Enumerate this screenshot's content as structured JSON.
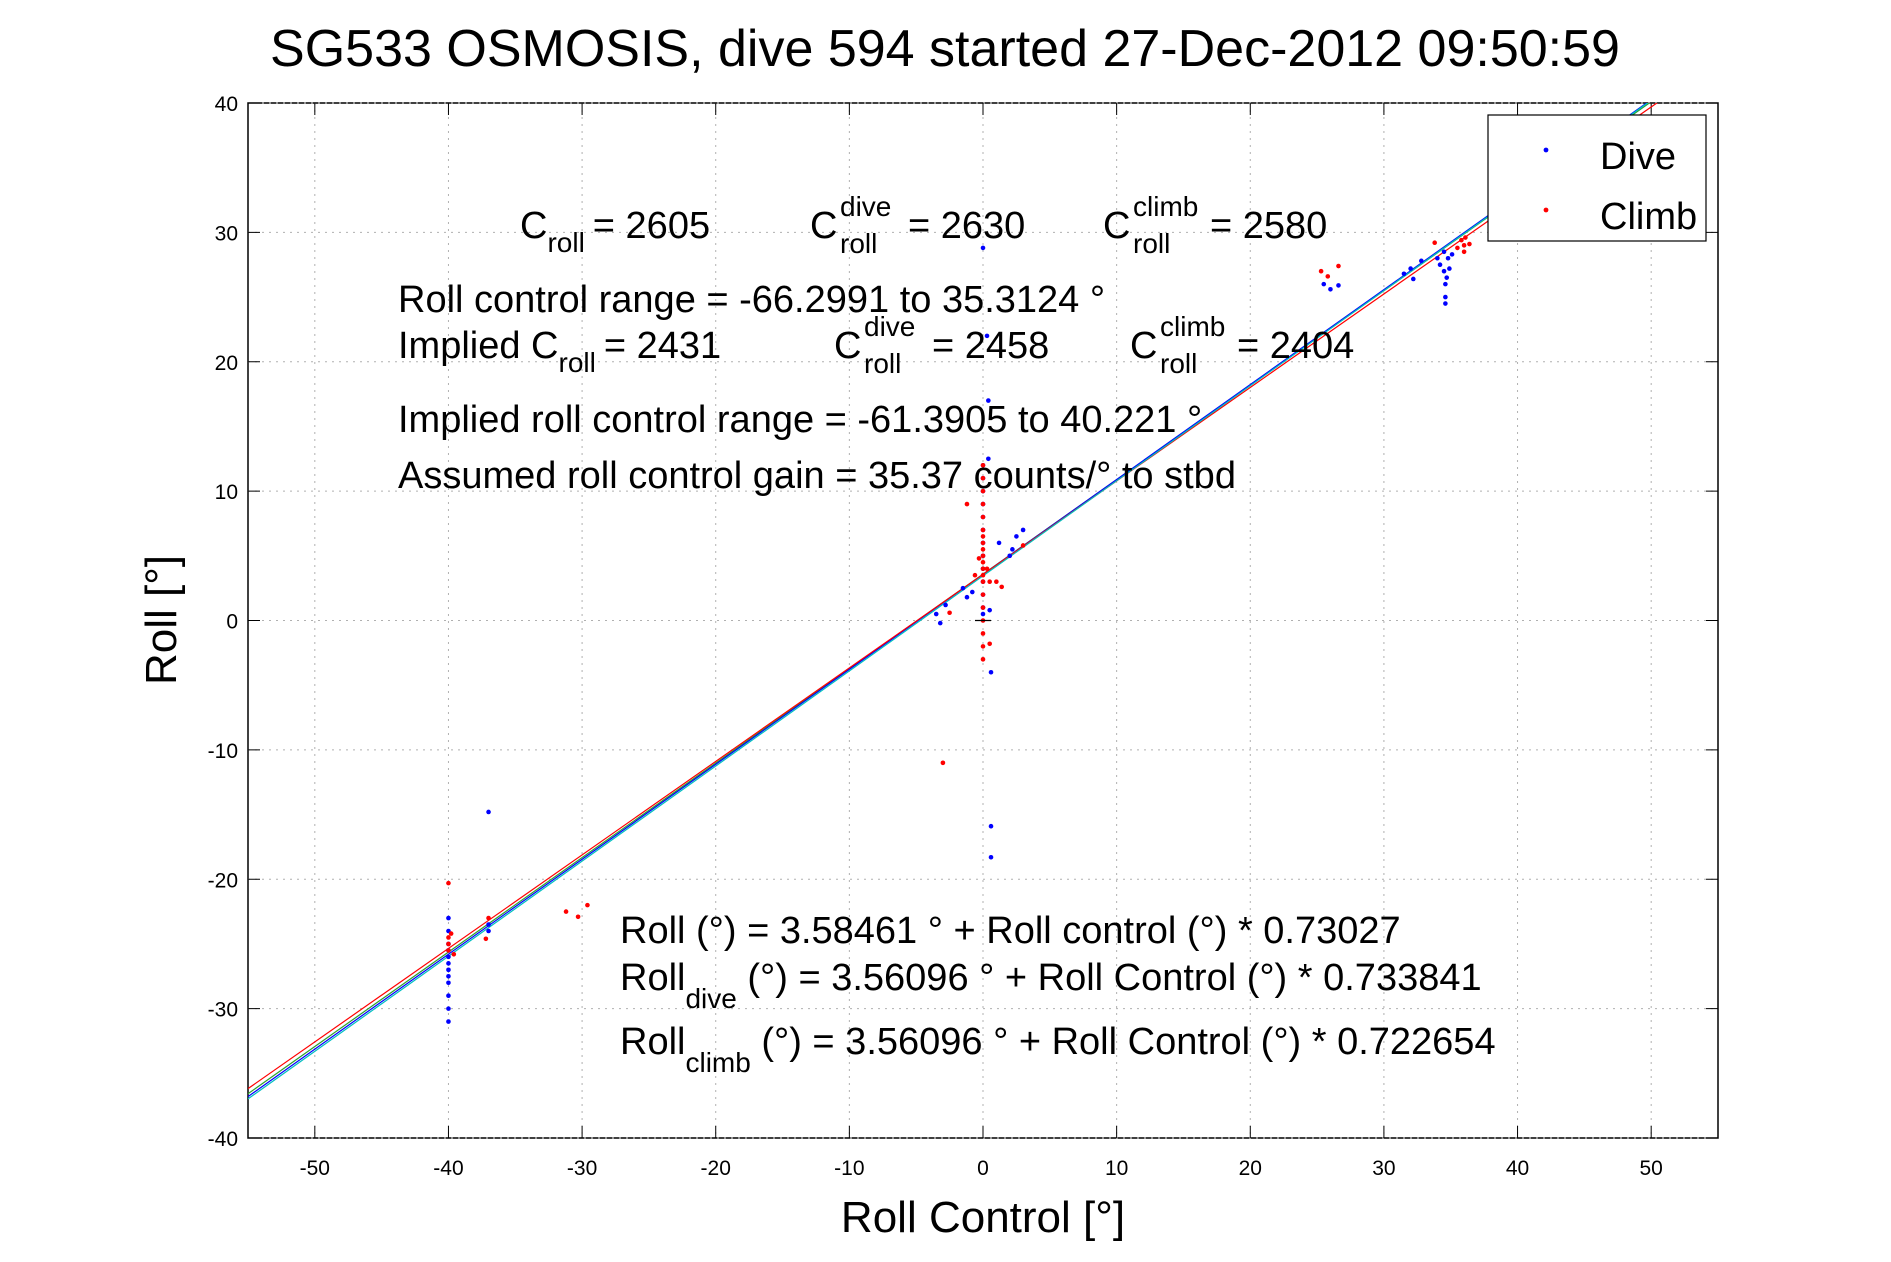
{
  "chart_data": {
    "type": "scatter",
    "title": "SG533 OSMOSIS, dive 594 started 27-Dec-2012 09:50:59",
    "xlabel": "Roll Control [°]",
    "ylabel": "Roll [°]",
    "xlim": [
      -55,
      55
    ],
    "ylim": [
      -40,
      40
    ],
    "xticks": [
      -50,
      -40,
      -30,
      -20,
      -10,
      0,
      10,
      20,
      30,
      40,
      50
    ],
    "yticks": [
      -40,
      -30,
      -20,
      -10,
      0,
      10,
      20,
      30,
      40
    ],
    "grid": true,
    "legend": {
      "position": "top-right",
      "entries": [
        {
          "label": "Dive",
          "color": "#0000ff"
        },
        {
          "label": "Climb",
          "color": "#ff0000"
        }
      ]
    },
    "annotations": {
      "c_roll": {
        "base": "C",
        "sub": "roll",
        "value": "= 2605"
      },
      "c_roll_dive": {
        "base": "C",
        "sup": "dive",
        "sub": "roll",
        "value": "= 2630"
      },
      "c_roll_climb": {
        "base": "C",
        "sup": "climb",
        "sub": "roll",
        "value": "= 2580"
      },
      "roll_control_range": "Roll control range = -66.2991 to 35.3124 °",
      "implied_c_roll": {
        "prefix": "Implied C",
        "sub": "roll",
        "value": "= 2431"
      },
      "implied_c_roll_dive": {
        "base": "C",
        "sup": "dive",
        "sub": "roll",
        "value": "= 2458"
      },
      "implied_c_roll_climb": {
        "base": "C",
        "sup": "climb",
        "sub": "roll",
        "value": "= 2404"
      },
      "implied_range": "Implied roll control range = -61.3905 to 40.221 °",
      "assumed_gain": "Assumed roll control gain = 35.37 counts/° to stbd",
      "fit_all": "Roll (°) = 3.58461 ° + Roll control (°) * 0.73027",
      "fit_dive": {
        "base": "Roll",
        "sub": "dive",
        "rest": " (°) = 3.56096 ° + Roll Control (°) * 0.733841"
      },
      "fit_climb": {
        "base": "Roll",
        "sub": "climb",
        "rest": " (°) = 3.56096 ° + Roll Control (°) * 0.722654"
      }
    },
    "fits": [
      {
        "name": "all",
        "intercept": 3.58461,
        "slope": 0.73027,
        "color": "#2ca02c"
      },
      {
        "name": "dive",
        "intercept": 3.56096,
        "slope": 0.733841,
        "color": "#0000ff"
      },
      {
        "name": "climb",
        "intercept": 3.56096,
        "slope": 0.722654,
        "color": "#ff0000"
      },
      {
        "name": "cyan",
        "intercept": 3.45,
        "slope": 0.735,
        "color": "#00bfbf"
      }
    ],
    "series": [
      {
        "name": "Dive",
        "color": "#0000ff",
        "points": [
          [
            -40,
            -23
          ],
          [
            -40,
            -24
          ],
          [
            -40,
            -25
          ],
          [
            -40,
            -26
          ],
          [
            -40,
            -27
          ],
          [
            -40,
            -28
          ],
          [
            -40,
            -29
          ],
          [
            -40,
            -30
          ],
          [
            -40,
            -31
          ],
          [
            -40,
            -25.5
          ],
          [
            -40,
            -26.5
          ],
          [
            -40,
            -27.5
          ],
          [
            -37,
            -14.8
          ],
          [
            -37,
            -23.5
          ],
          [
            -37,
            -24
          ],
          [
            -3.5,
            0.5
          ],
          [
            -3.2,
            -0.2
          ],
          [
            -2.8,
            1.2
          ],
          [
            -1.5,
            2.5
          ],
          [
            -1.2,
            1.8
          ],
          [
            -0.8,
            2.2
          ],
          [
            0,
            3
          ],
          [
            0,
            4
          ],
          [
            0,
            5
          ],
          [
            0,
            6
          ],
          [
            0,
            7
          ],
          [
            0,
            8
          ],
          [
            0,
            9
          ],
          [
            0,
            10
          ],
          [
            0,
            11
          ],
          [
            0,
            12
          ],
          [
            0,
            2
          ],
          [
            0,
            1
          ],
          [
            0,
            0.5
          ],
          [
            0,
            28.8
          ],
          [
            0.4,
            17
          ],
          [
            0.4,
            12.5
          ],
          [
            0.5,
            0.8
          ],
          [
            0.6,
            -4
          ],
          [
            0.6,
            -15.9
          ],
          [
            0.6,
            -18.3
          ],
          [
            0.3,
            22
          ],
          [
            1.2,
            6
          ],
          [
            2,
            5
          ],
          [
            2.5,
            6.5
          ],
          [
            3,
            7
          ],
          [
            2.2,
            5.5
          ],
          [
            31.5,
            26.8
          ],
          [
            32,
            27.2
          ],
          [
            32.2,
            26.4
          ],
          [
            32.8,
            27.8
          ],
          [
            34,
            28
          ],
          [
            34.2,
            27.5
          ],
          [
            34.5,
            28.5
          ],
          [
            34.5,
            27
          ],
          [
            34.6,
            26
          ],
          [
            34.6,
            25
          ],
          [
            34.6,
            24.5
          ],
          [
            34.7,
            26.5
          ],
          [
            34.8,
            28
          ],
          [
            34.9,
            27.2
          ],
          [
            35.1,
            28.3
          ],
          [
            25.5,
            26
          ],
          [
            26,
            25.6
          ],
          [
            26.6,
            25.9
          ]
        ]
      },
      {
        "name": "Climb",
        "color": "#ff0000",
        "points": [
          [
            -40,
            -20.3
          ],
          [
            -40,
            -24.5
          ],
          [
            -40,
            -25
          ],
          [
            -40,
            -25.5
          ],
          [
            -39.8,
            -24.2
          ],
          [
            -39.6,
            -25.8
          ],
          [
            -37,
            -23
          ],
          [
            -37.2,
            -24.6
          ],
          [
            -31.2,
            -22.5
          ],
          [
            -30.3,
            -22.9
          ],
          [
            -29.6,
            -22
          ],
          [
            -3,
            -11
          ],
          [
            -2.5,
            0.6
          ],
          [
            0,
            0
          ],
          [
            0,
            1
          ],
          [
            0,
            2
          ],
          [
            0,
            3
          ],
          [
            0,
            3.5
          ],
          [
            0,
            4
          ],
          [
            0,
            4.5
          ],
          [
            0,
            5
          ],
          [
            0,
            5.5
          ],
          [
            0,
            6
          ],
          [
            0,
            6.5
          ],
          [
            0,
            7
          ],
          [
            0,
            8
          ],
          [
            0,
            9
          ],
          [
            0,
            10
          ],
          [
            0,
            11
          ],
          [
            0,
            12
          ],
          [
            0,
            -1
          ],
          [
            0,
            -2
          ],
          [
            0,
            -3
          ],
          [
            0.3,
            4
          ],
          [
            0.5,
            3
          ],
          [
            0.5,
            -1.8
          ],
          [
            -0.3,
            4.8
          ],
          [
            -0.6,
            3.5
          ],
          [
            1,
            3
          ],
          [
            1.4,
            2.6
          ],
          [
            3,
            5.8
          ],
          [
            -1.2,
            9
          ],
          [
            25.3,
            27
          ],
          [
            25.8,
            26.6
          ],
          [
            26.6,
            27.4
          ],
          [
            33.8,
            29.2
          ],
          [
            35.5,
            28.8
          ],
          [
            35.8,
            29.4
          ],
          [
            36,
            28.5
          ],
          [
            36,
            29
          ],
          [
            36.1,
            29.6
          ],
          [
            36.4,
            29.1
          ]
        ]
      }
    ]
  }
}
